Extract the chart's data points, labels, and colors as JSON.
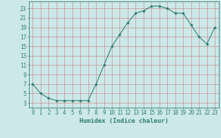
{
  "x": [
    0,
    1,
    2,
    3,
    4,
    5,
    6,
    7,
    8,
    9,
    10,
    11,
    12,
    13,
    14,
    15,
    16,
    17,
    18,
    19,
    20,
    21,
    22,
    23
  ],
  "y": [
    7,
    5,
    4,
    3.5,
    3.5,
    3.5,
    3.5,
    3.5,
    7,
    11,
    15,
    17.5,
    20,
    22,
    22.5,
    23.5,
    23.5,
    23,
    22,
    22,
    19.5,
    17,
    15.5,
    19
  ],
  "line_color": "#2e7d6e",
  "marker": "D",
  "marker_size": 1.8,
  "bg_color": "#cce8e8",
  "grid_color": "#c87878",
  "xlabel": "Humidex (Indice chaleur)",
  "xlim": [
    -0.5,
    23.5
  ],
  "ylim": [
    2,
    24.5
  ],
  "yticks": [
    3,
    5,
    7,
    9,
    11,
    13,
    15,
    17,
    19,
    21,
    23
  ],
  "xticks": [
    0,
    1,
    2,
    3,
    4,
    5,
    6,
    7,
    8,
    9,
    10,
    11,
    12,
    13,
    14,
    15,
    16,
    17,
    18,
    19,
    20,
    21,
    22,
    23
  ],
  "xtick_labels": [
    "0",
    "1",
    "2",
    "3",
    "4",
    "5",
    "6",
    "7",
    "8",
    "9",
    "10",
    "11",
    "12",
    "13",
    "14",
    "15",
    "16",
    "17",
    "18",
    "19",
    "20",
    "21",
    "22",
    "23"
  ],
  "text_color": "#2e7d6e",
  "font_size": 5.5,
  "xlabel_fontsize": 6.5,
  "linewidth": 0.8
}
